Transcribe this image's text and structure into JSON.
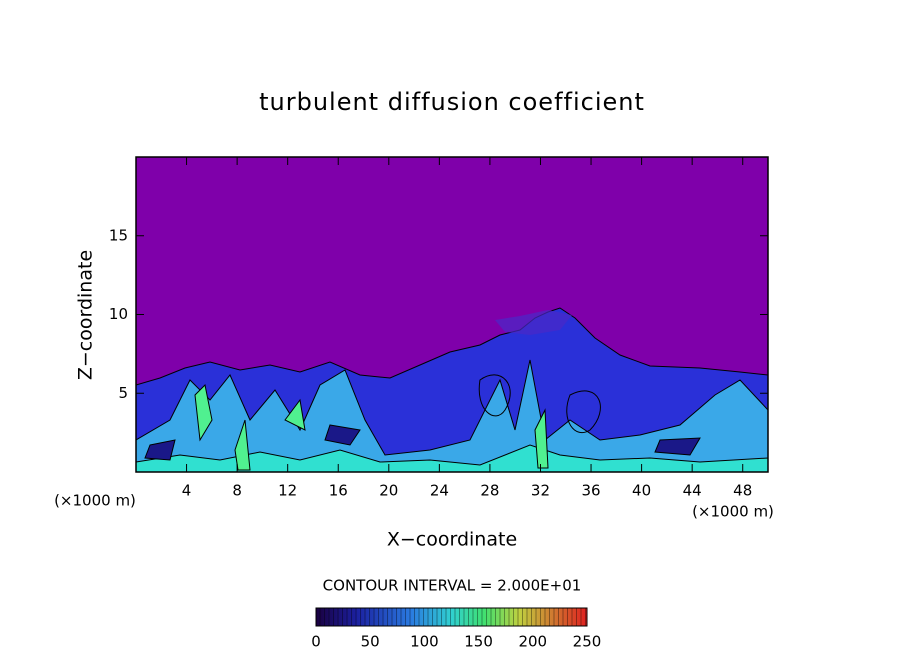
{
  "chart_data": {
    "type": "contour",
    "title": "turbulent diffusion coefficient",
    "xlabel": "X−coordinate",
    "ylabel": "Z−coordinate",
    "x_unit": "(×1000 m)",
    "y_unit": "(×1000 m)",
    "annotation": "CONTOUR INTERVAL = 2.000E+01",
    "xlim": [
      0,
      50
    ],
    "xticks": [
      4,
      8,
      12,
      16,
      20,
      24,
      28,
      32,
      36,
      40,
      44,
      48
    ],
    "ylim": [
      0,
      20
    ],
    "yticks": [
      5,
      10,
      15
    ],
    "clim": [
      0,
      250
    ],
    "cticks": [
      0,
      50,
      100,
      150,
      200,
      250
    ],
    "background_color": "#7f00aa"
  }
}
